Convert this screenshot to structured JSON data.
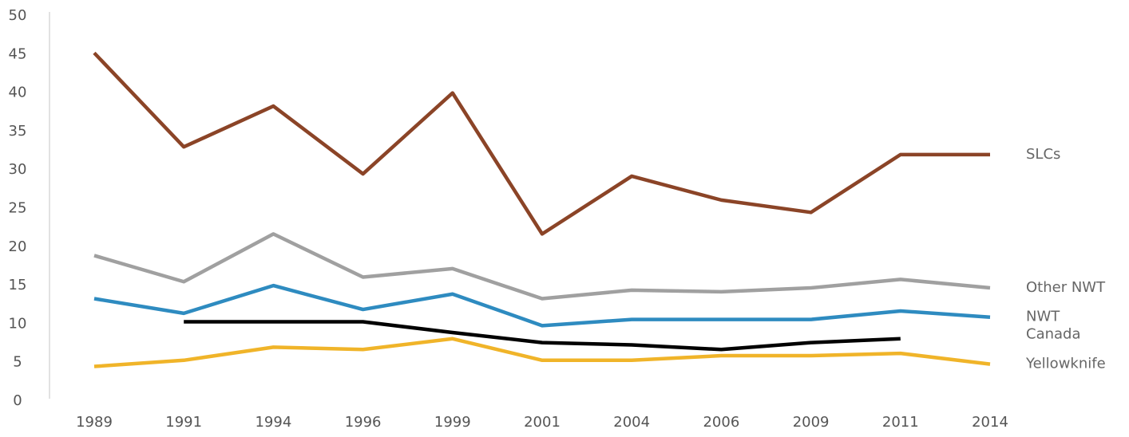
{
  "chart_data": {
    "type": "line",
    "categories": [
      "1989",
      "1991",
      "1994",
      "1996",
      "1999",
      "2001",
      "2004",
      "2006",
      "2009",
      "2011",
      "2014"
    ],
    "ylim": [
      0,
      50
    ],
    "yticks": [
      0,
      5,
      10,
      15,
      20,
      25,
      30,
      35,
      40,
      45,
      50
    ],
    "series": [
      {
        "name": "SLCs",
        "color": "#8b4427",
        "values": [
          45.2,
          33,
          38.3,
          29.5,
          40,
          21.7,
          29.2,
          26.1,
          24.5,
          32,
          32
        ]
      },
      {
        "name": "Other NWT",
        "color": "#a0a0a0",
        "values": [
          18.9,
          15.5,
          21.7,
          16.1,
          17.2,
          13.3,
          14.4,
          14.2,
          14.7,
          15.8,
          14.7
        ]
      },
      {
        "name": "NWT",
        "color": "#2e8bc0",
        "values": [
          13.3,
          11.4,
          15.0,
          11.9,
          13.9,
          9.8,
          10.6,
          10.6,
          10.6,
          11.7,
          10.9
        ]
      },
      {
        "name": "Canada",
        "color": "#000000",
        "values": [
          null,
          10.3,
          10.3,
          10.3,
          8.9,
          7.6,
          7.3,
          6.7,
          7.6,
          8.1,
          null
        ]
      },
      {
        "name": "Yellowknife",
        "color": "#f0b429",
        "values": [
          4.5,
          5.3,
          7.0,
          6.7,
          8.1,
          5.3,
          5.3,
          5.9,
          5.9,
          6.2,
          4.8
        ]
      }
    ]
  }
}
